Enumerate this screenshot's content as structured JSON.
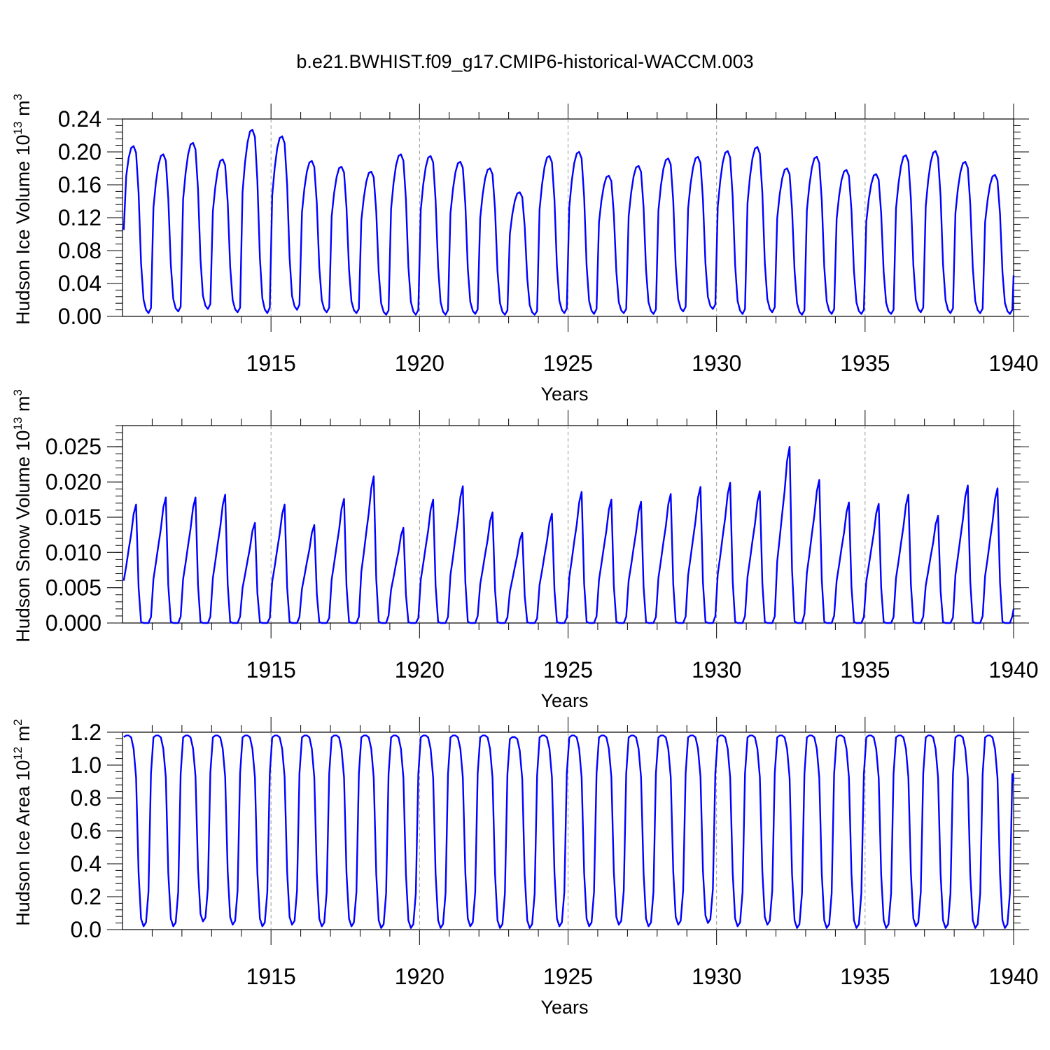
{
  "title": "b.e21.BWHIST.f09_g17.CMIP6-historical-WACCM.003",
  "chart_data": [
    {
      "type": "line",
      "ylabel_main": "Hudson Ice Volume 10",
      "ylabel_exp": "13",
      "ylabel_unit": " m",
      "ylabel_unit_exp": "3",
      "xlabel": "Years",
      "xlim": [
        1910,
        1940
      ],
      "ylim": [
        0,
        0.24
      ],
      "yticks": [
        0.0,
        0.04,
        0.08,
        0.12,
        0.16,
        0.2,
        0.24
      ],
      "ytick_labels": [
        "0.00",
        "0.04",
        "0.08",
        "0.12",
        "0.16",
        "0.20",
        "0.24"
      ],
      "xticks": [
        1915,
        1920,
        1925,
        1930,
        1935,
        1940
      ],
      "xtick_labels": [
        "1915",
        "1920",
        "1925",
        "1930",
        "1935",
        "1940"
      ],
      "color": "#0000ff",
      "start": 0.105,
      "end": 0.05,
      "annual_max": [
        0.207,
        0.197,
        0.211,
        0.191,
        0.227,
        0.219,
        0.189,
        0.182,
        0.176,
        0.197,
        0.195,
        0.188,
        0.18,
        0.151,
        0.195,
        0.2,
        0.171,
        0.183,
        0.192,
        0.194,
        0.201,
        0.206,
        0.18,
        0.194,
        0.178,
        0.173,
        0.196,
        0.201,
        0.188,
        0.172
      ],
      "annual_min": [
        0.004,
        0.006,
        0.009,
        0.005,
        0.004,
        0.008,
        0.005,
        0.004,
        0.002,
        0.002,
        0.002,
        0.003,
        0.002,
        0.002,
        0.004,
        0.003,
        0.004,
        0.003,
        0.006,
        0.009,
        0.003,
        0.005,
        0.002,
        0.003,
        0.003,
        0.003,
        0.005,
        0.004,
        0.004,
        0.003
      ]
    },
    {
      "type": "line",
      "ylabel_main": "Hudson Snow Volume 10",
      "ylabel_exp": "13",
      "ylabel_unit": " m",
      "ylabel_unit_exp": "3",
      "xlabel": "Years",
      "xlim": [
        1910,
        1940
      ],
      "ylim": [
        0,
        0.028
      ],
      "yticks": [
        0.0,
        0.005,
        0.01,
        0.015,
        0.02,
        0.025
      ],
      "ytick_labels": [
        "0.000",
        "0.005",
        "0.010",
        "0.015",
        "0.020",
        "0.025"
      ],
      "xticks": [
        1915,
        1920,
        1925,
        1930,
        1935,
        1940
      ],
      "xtick_labels": [
        "1915",
        "1920",
        "1925",
        "1930",
        "1935",
        "1940"
      ],
      "color": "#0000ff",
      "start": 0.006,
      "end": 0.002,
      "annual_max": [
        0.0168,
        0.0178,
        0.0178,
        0.0182,
        0.0142,
        0.0168,
        0.0139,
        0.0176,
        0.0208,
        0.0135,
        0.0175,
        0.0194,
        0.0157,
        0.0128,
        0.0155,
        0.0186,
        0.0175,
        0.0172,
        0.0183,
        0.0193,
        0.0199,
        0.0187,
        0.025,
        0.0203,
        0.0171,
        0.0169,
        0.0182,
        0.0152,
        0.0195,
        0.0191
      ],
      "annual_min": [
        0.0,
        0.0,
        0.0,
        0.0,
        0.0,
        0.0,
        0.0,
        0.0,
        0.0,
        0.0,
        0.0,
        0.0,
        0.0,
        0.0,
        0.0,
        0.0,
        0.0,
        0.0,
        0.0,
        0.0,
        0.0,
        0.0,
        0.0,
        0.0,
        0.0,
        0.0,
        0.0,
        0.0,
        0.0,
        0.0
      ]
    },
    {
      "type": "line",
      "ylabel_main": "Hudson Ice Area 10",
      "ylabel_exp": "12",
      "ylabel_unit": " m",
      "ylabel_unit_exp": "2",
      "xlabel": "Years",
      "xlim": [
        1910,
        1940
      ],
      "ylim": [
        0,
        1.2
      ],
      "yticks": [
        0.0,
        0.2,
        0.4,
        0.6,
        0.8,
        1.0,
        1.2
      ],
      "ytick_labels": [
        "0.0",
        "0.2",
        "0.4",
        "0.6",
        "0.8",
        "1.0",
        "1.2"
      ],
      "xticks": [
        1915,
        1920,
        1925,
        1930,
        1935,
        1940
      ],
      "xtick_labels": [
        "1915",
        "1920",
        "1925",
        "1930",
        "1935",
        "1940"
      ],
      "color": "#0000ff",
      "start": 1.17,
      "end": 0.9,
      "annual_max": [
        1.18,
        1.18,
        1.18,
        1.18,
        1.18,
        1.18,
        1.18,
        1.18,
        1.18,
        1.18,
        1.18,
        1.18,
        1.18,
        1.17,
        1.18,
        1.18,
        1.18,
        1.18,
        1.18,
        1.18,
        1.18,
        1.18,
        1.18,
        1.18,
        1.18,
        1.18,
        1.18,
        1.18,
        1.18,
        1.18
      ],
      "annual_min": [
        0.02,
        0.02,
        0.05,
        0.03,
        0.02,
        0.03,
        0.02,
        0.02,
        0.01,
        0.01,
        0.01,
        0.02,
        0.01,
        0.01,
        0.02,
        0.02,
        0.03,
        0.02,
        0.03,
        0.04,
        0.02,
        0.03,
        0.01,
        0.01,
        0.01,
        0.01,
        0.02,
        0.01,
        0.01,
        0.01
      ]
    }
  ]
}
